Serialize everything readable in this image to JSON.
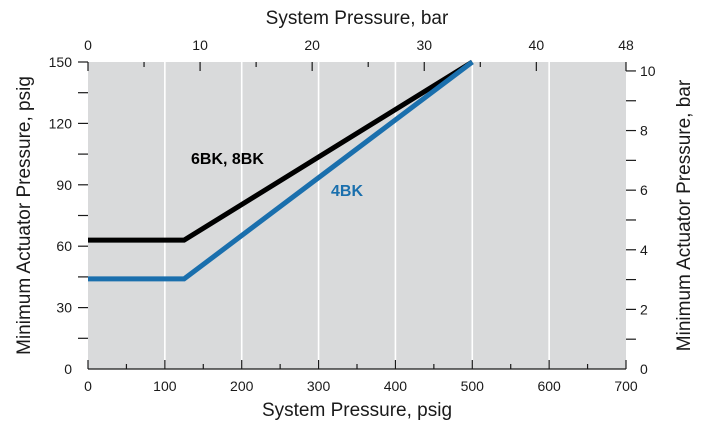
{
  "chart_data": {
    "type": "line",
    "colors": {
      "background": "#d9dadb",
      "grid": "#ffffff",
      "axis": "#1a1a1a"
    },
    "x_bottom": {
      "label": "System Pressure, psig",
      "range": [
        0,
        700
      ],
      "ticks": [
        0,
        100,
        200,
        300,
        400,
        500,
        600,
        700
      ],
      "tick_labels": [
        "0",
        "100",
        "200",
        "300",
        "400",
        "500",
        "600",
        "700"
      ]
    },
    "x_top": {
      "label": "System Pressure, bar",
      "range": [
        0,
        48
      ],
      "ticks": [
        0,
        10,
        20,
        30,
        40,
        48
      ],
      "tick_labels": [
        "0",
        "10",
        "20",
        "30",
        "40",
        "48"
      ]
    },
    "y_left": {
      "label": "Minimum Actuator Pressure, psig",
      "range": [
        0,
        150
      ],
      "ticks": [
        0,
        30,
        60,
        90,
        120,
        150
      ],
      "tick_labels": [
        "0",
        "30",
        "60",
        "90",
        "120",
        "150"
      ]
    },
    "y_right": {
      "label": "Minimum Actuator Pressure, bar",
      "range": [
        0,
        10.3
      ],
      "ticks": [
        0,
        2,
        4,
        6,
        8,
        10
      ],
      "tick_labels": [
        "0",
        "2",
        "4",
        "6",
        "8",
        "10"
      ]
    },
    "grid": true,
    "series": [
      {
        "name": "6BK, 8BK",
        "color": "#000000",
        "x": [
          0,
          125,
          500
        ],
        "y": [
          63,
          63,
          150
        ]
      },
      {
        "name": "4BK",
        "color": "#1a6fad",
        "x": [
          0,
          125,
          500
        ],
        "y": [
          44,
          44,
          150
        ]
      }
    ]
  }
}
